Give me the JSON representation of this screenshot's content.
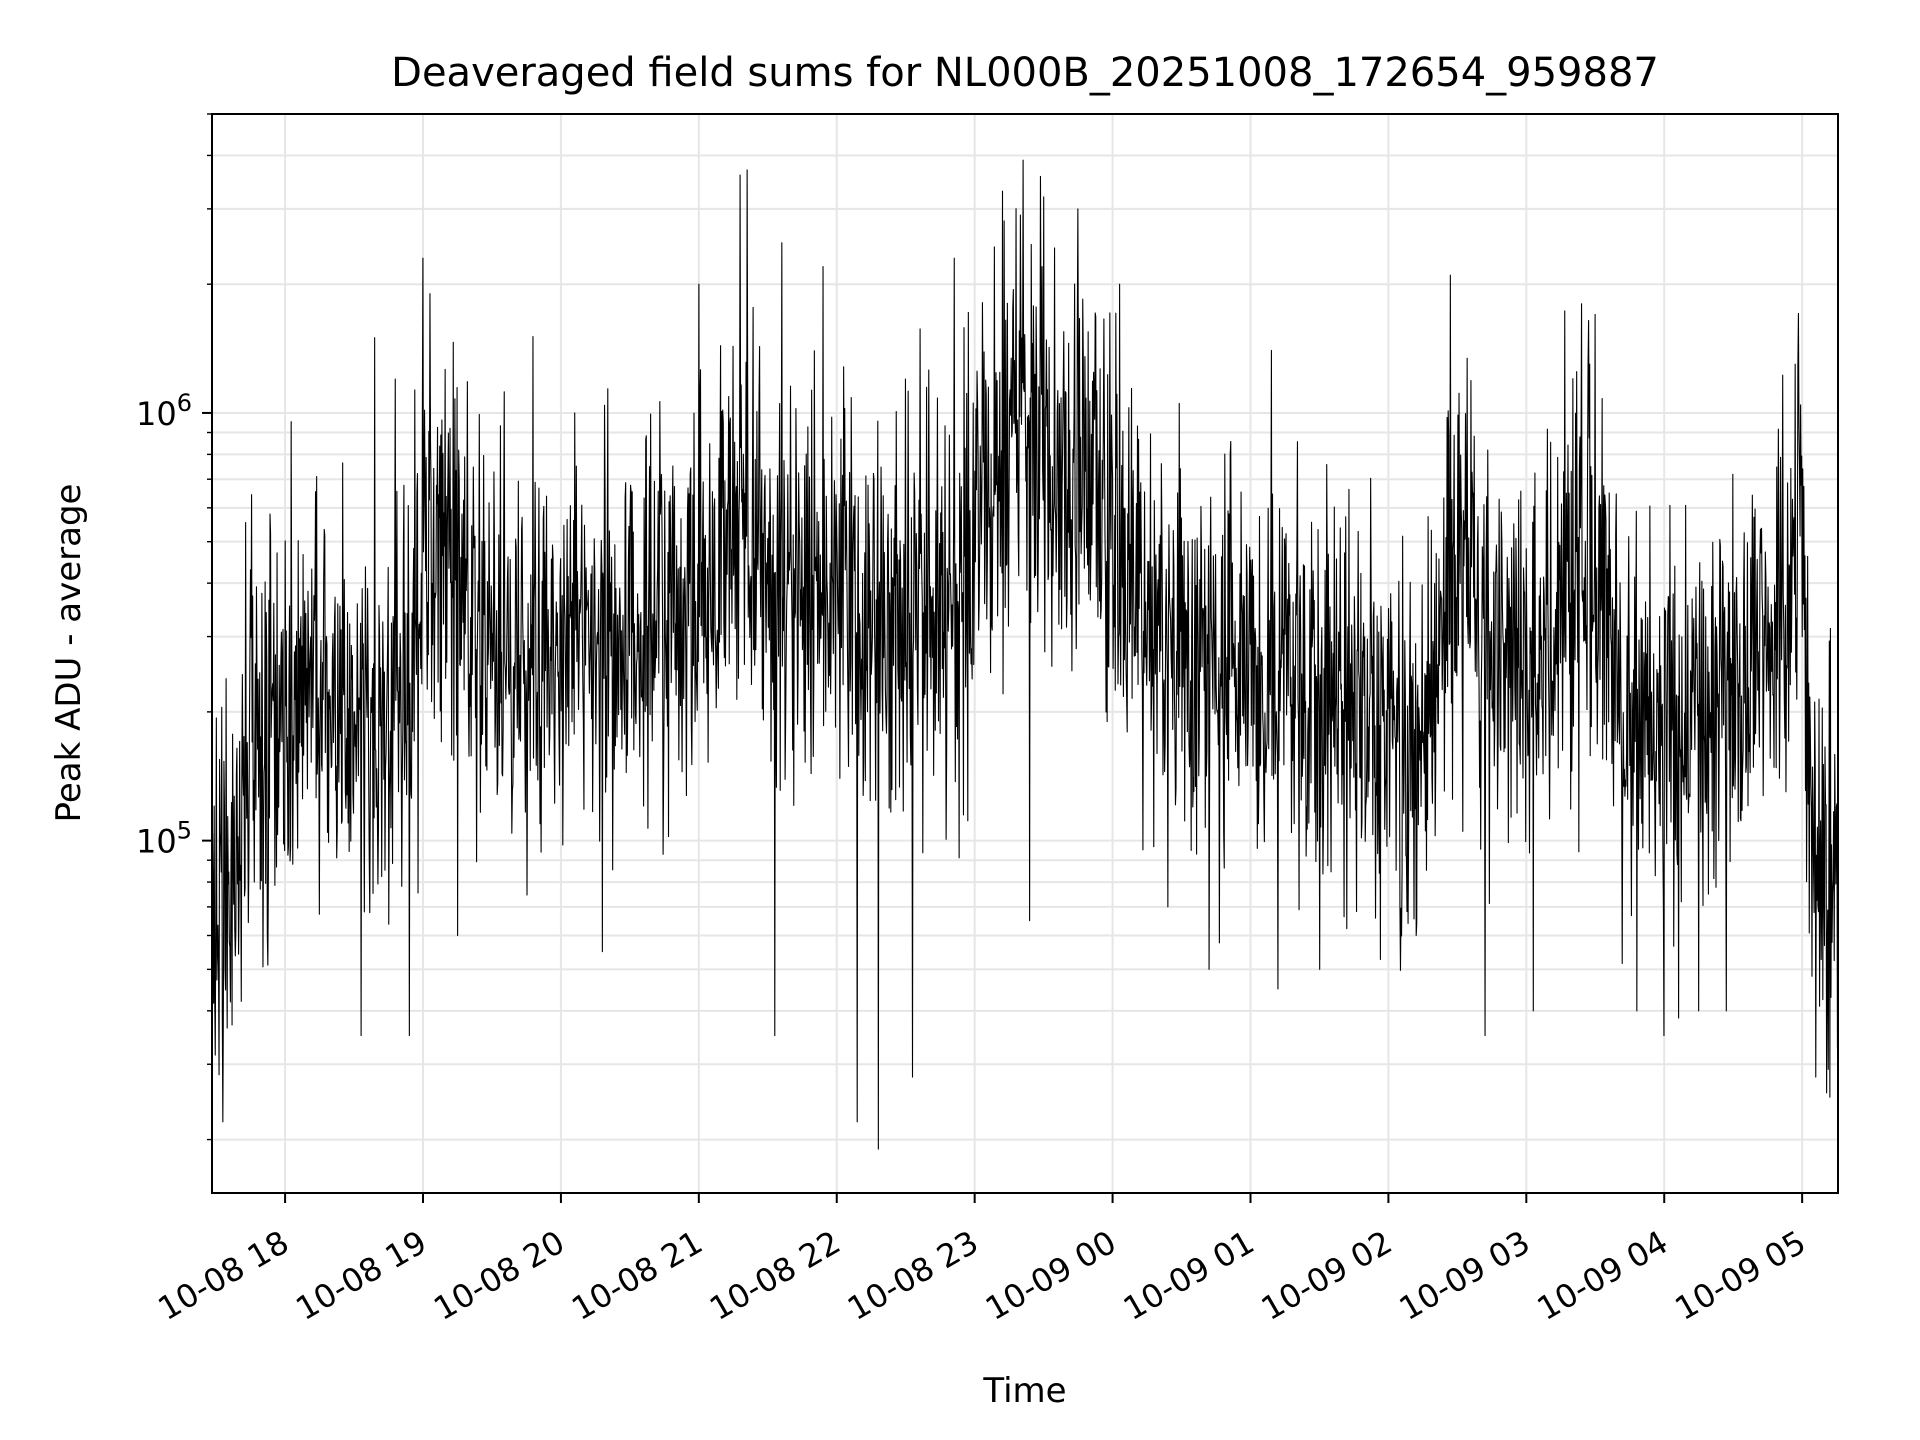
{
  "chart_data": {
    "type": "line",
    "title": "Deaveraged field sums for NL000B_20251008_172654_959887",
    "xlabel": "Time",
    "ylabel": "Peak ADU - average",
    "yscale": "log",
    "ylim": [
      15000,
      5000000
    ],
    "xlim_hours_from_2025-10-08T17:00": [
      0.47,
      12.26
    ],
    "x_tick_labels": [
      "10-08 18",
      "10-08 19",
      "10-08 20",
      "10-08 21",
      "10-08 22",
      "10-08 23",
      "10-09 00",
      "10-09 01",
      "10-09 02",
      "10-09 03",
      "10-09 04",
      "10-09 05"
    ],
    "x_tick_hours_from_2025-10-08T17:00": [
      1,
      2,
      3,
      4,
      5,
      6,
      7,
      8,
      9,
      10,
      11,
      12
    ],
    "y_major_ticks": [
      100000,
      1000000
    ],
    "y_major_tick_labels": [
      {
        "base": "10",
        "exp": "5",
        "value": 100000
      },
      {
        "base": "10",
        "exp": "6",
        "value": 1000000
      }
    ],
    "grid": true,
    "line_color": "#000000",
    "grid_color": "#e6e6e6",
    "envelope_note": "approximate median level of the noisy series per hour offset (hours from 2025-10-08 17:00, value in ADU)",
    "series": [
      {
        "name": "Peak ADU - average",
        "x": [
          0.47,
          0.6,
          0.75,
          0.9,
          1.1,
          1.3,
          1.5,
          1.7,
          1.9,
          2.0,
          2.15,
          2.3,
          2.5,
          2.7,
          2.9,
          3.1,
          3.4,
          3.7,
          4.0,
          4.2,
          4.35,
          4.5,
          4.7,
          4.9,
          5.1,
          5.3,
          5.5,
          5.7,
          5.9,
          6.1,
          6.3,
          6.5,
          6.7,
          6.9,
          7.1,
          7.4,
          7.7,
          8.0,
          8.3,
          8.6,
          8.9,
          9.1,
          9.3,
          9.45,
          9.6,
          9.8,
          10.0,
          10.2,
          10.4,
          10.55,
          10.7,
          10.9,
          11.1,
          11.3,
          11.5,
          11.7,
          11.9,
          12.0,
          12.05,
          12.15,
          12.26
        ],
        "y": [
          60000,
          70000,
          180000,
          200000,
          250000,
          230000,
          210000,
          190000,
          180000,
          500000,
          600000,
          350000,
          300000,
          280000,
          300000,
          320000,
          300000,
          320000,
          350000,
          500000,
          550000,
          420000,
          380000,
          380000,
          370000,
          350000,
          330000,
          350000,
          380000,
          700000,
          900000,
          850000,
          780000,
          650000,
          400000,
          300000,
          260000,
          250000,
          220000,
          200000,
          190000,
          180000,
          200000,
          420000,
          380000,
          250000,
          240000,
          330000,
          450000,
          350000,
          180000,
          170000,
          160000,
          200000,
          250000,
          280000,
          350000,
          600000,
          120000,
          90000,
          60000
        ]
      }
    ],
    "spikes": [
      {
        "x": 0.55,
        "y": 22000
      },
      {
        "x": 1.55,
        "y": 35000
      },
      {
        "x": 1.65,
        "y": 1500000
      },
      {
        "x": 1.8,
        "y": 1200000
      },
      {
        "x": 1.9,
        "y": 35000
      },
      {
        "x": 2.0,
        "y": 2300000
      },
      {
        "x": 2.05,
        "y": 1900000
      },
      {
        "x": 2.25,
        "y": 60000
      },
      {
        "x": 3.1,
        "y": 1000000
      },
      {
        "x": 3.3,
        "y": 55000
      },
      {
        "x": 4.0,
        "y": 2000000
      },
      {
        "x": 4.3,
        "y": 3600000
      },
      {
        "x": 4.35,
        "y": 3700000
      },
      {
        "x": 4.55,
        "y": 35000
      },
      {
        "x": 4.6,
        "y": 2500000
      },
      {
        "x": 4.9,
        "y": 2200000
      },
      {
        "x": 5.15,
        "y": 22000
      },
      {
        "x": 5.3,
        "y": 19000
      },
      {
        "x": 5.5,
        "y": 1200000
      },
      {
        "x": 5.55,
        "y": 28000
      },
      {
        "x": 5.85,
        "y": 2300000
      },
      {
        "x": 6.2,
        "y": 3300000
      },
      {
        "x": 6.35,
        "y": 3900000
      },
      {
        "x": 6.4,
        "y": 65000
      },
      {
        "x": 6.5,
        "y": 3200000
      },
      {
        "x": 6.75,
        "y": 3000000
      },
      {
        "x": 7.05,
        "y": 2000000
      },
      {
        "x": 7.4,
        "y": 70000
      },
      {
        "x": 7.7,
        "y": 50000
      },
      {
        "x": 8.15,
        "y": 1400000
      },
      {
        "x": 8.2,
        "y": 45000
      },
      {
        "x": 8.5,
        "y": 50000
      },
      {
        "x": 9.2,
        "y": 60000
      },
      {
        "x": 9.45,
        "y": 2100000
      },
      {
        "x": 9.7,
        "y": 35000
      },
      {
        "x": 10.05,
        "y": 40000
      },
      {
        "x": 10.4,
        "y": 1800000
      },
      {
        "x": 10.5,
        "y": 1700000
      },
      {
        "x": 10.8,
        "y": 40000
      },
      {
        "x": 11.0,
        "y": 35000
      },
      {
        "x": 11.25,
        "y": 40000
      },
      {
        "x": 11.45,
        "y": 40000
      },
      {
        "x": 11.95,
        "y": 1300000
      },
      {
        "x": 12.1,
        "y": 28000
      }
    ]
  }
}
